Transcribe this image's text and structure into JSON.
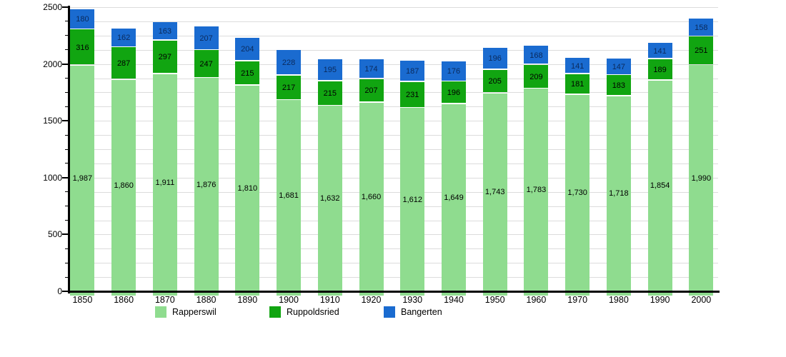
{
  "chart_data": {
    "type": "bar",
    "stacked": true,
    "title": "",
    "xlabel": "",
    "ylabel": "",
    "categories": [
      "1850",
      "1860",
      "1870",
      "1880",
      "1890",
      "1900",
      "1910",
      "1920",
      "1930",
      "1940",
      "1950",
      "1960",
      "1970",
      "1980",
      "1990",
      "2000"
    ],
    "series": [
      {
        "name": "Rapperswil",
        "color": "#8fdc8f",
        "label_color": "#000000",
        "values": [
          1987,
          1860,
          1911,
          1876,
          1810,
          1681,
          1632,
          1660,
          1612,
          1649,
          1743,
          1783,
          1730,
          1718,
          1854,
          1990
        ],
        "value_labels": [
          "1,987",
          "1,860",
          "1,911",
          "1,876",
          "1,810",
          "1,681",
          "1,632",
          "1,660",
          "1,612",
          "1,649",
          "1,743",
          "1,783",
          "1,730",
          "1,718",
          "1,854",
          "1,990"
        ]
      },
      {
        "name": "Ruppoldsried",
        "color": "#11a511",
        "label_color": "#000000",
        "values": [
          316,
          287,
          297,
          247,
          215,
          217,
          215,
          207,
          231,
          196,
          205,
          209,
          181,
          183,
          189,
          251
        ],
        "value_labels": [
          "316",
          "287",
          "297",
          "247",
          "215",
          "217",
          "215",
          "207",
          "231",
          "196",
          "205",
          "209",
          "181",
          "183",
          "189",
          "251"
        ]
      },
      {
        "name": "Bangerten",
        "color": "#1a6bd0",
        "label_color": "#0a2a5c",
        "values": [
          180,
          162,
          163,
          207,
          204,
          228,
          195,
          174,
          187,
          176,
          196,
          168,
          141,
          147,
          141,
          158
        ],
        "value_labels": [
          "180",
          "162",
          "163",
          "207",
          "204",
          "228",
          "195",
          "174",
          "187",
          "176",
          "196",
          "168",
          "141",
          "147",
          "141",
          "158"
        ]
      }
    ],
    "ylim": [
      0,
      2500
    ],
    "yticks": [
      "0",
      "500",
      "1000",
      "1500",
      "2000",
      "2500"
    ],
    "ytick_values": [
      0,
      500,
      1000,
      1500,
      2000,
      2500
    ],
    "minor_gridline_step": 125,
    "grid": true,
    "legend_position": "bottom",
    "value_label_placement": "centered-inside-segments",
    "axis_color": "#000000",
    "gridline_color": "#dcdcdc",
    "background_color": "#ffffff"
  }
}
